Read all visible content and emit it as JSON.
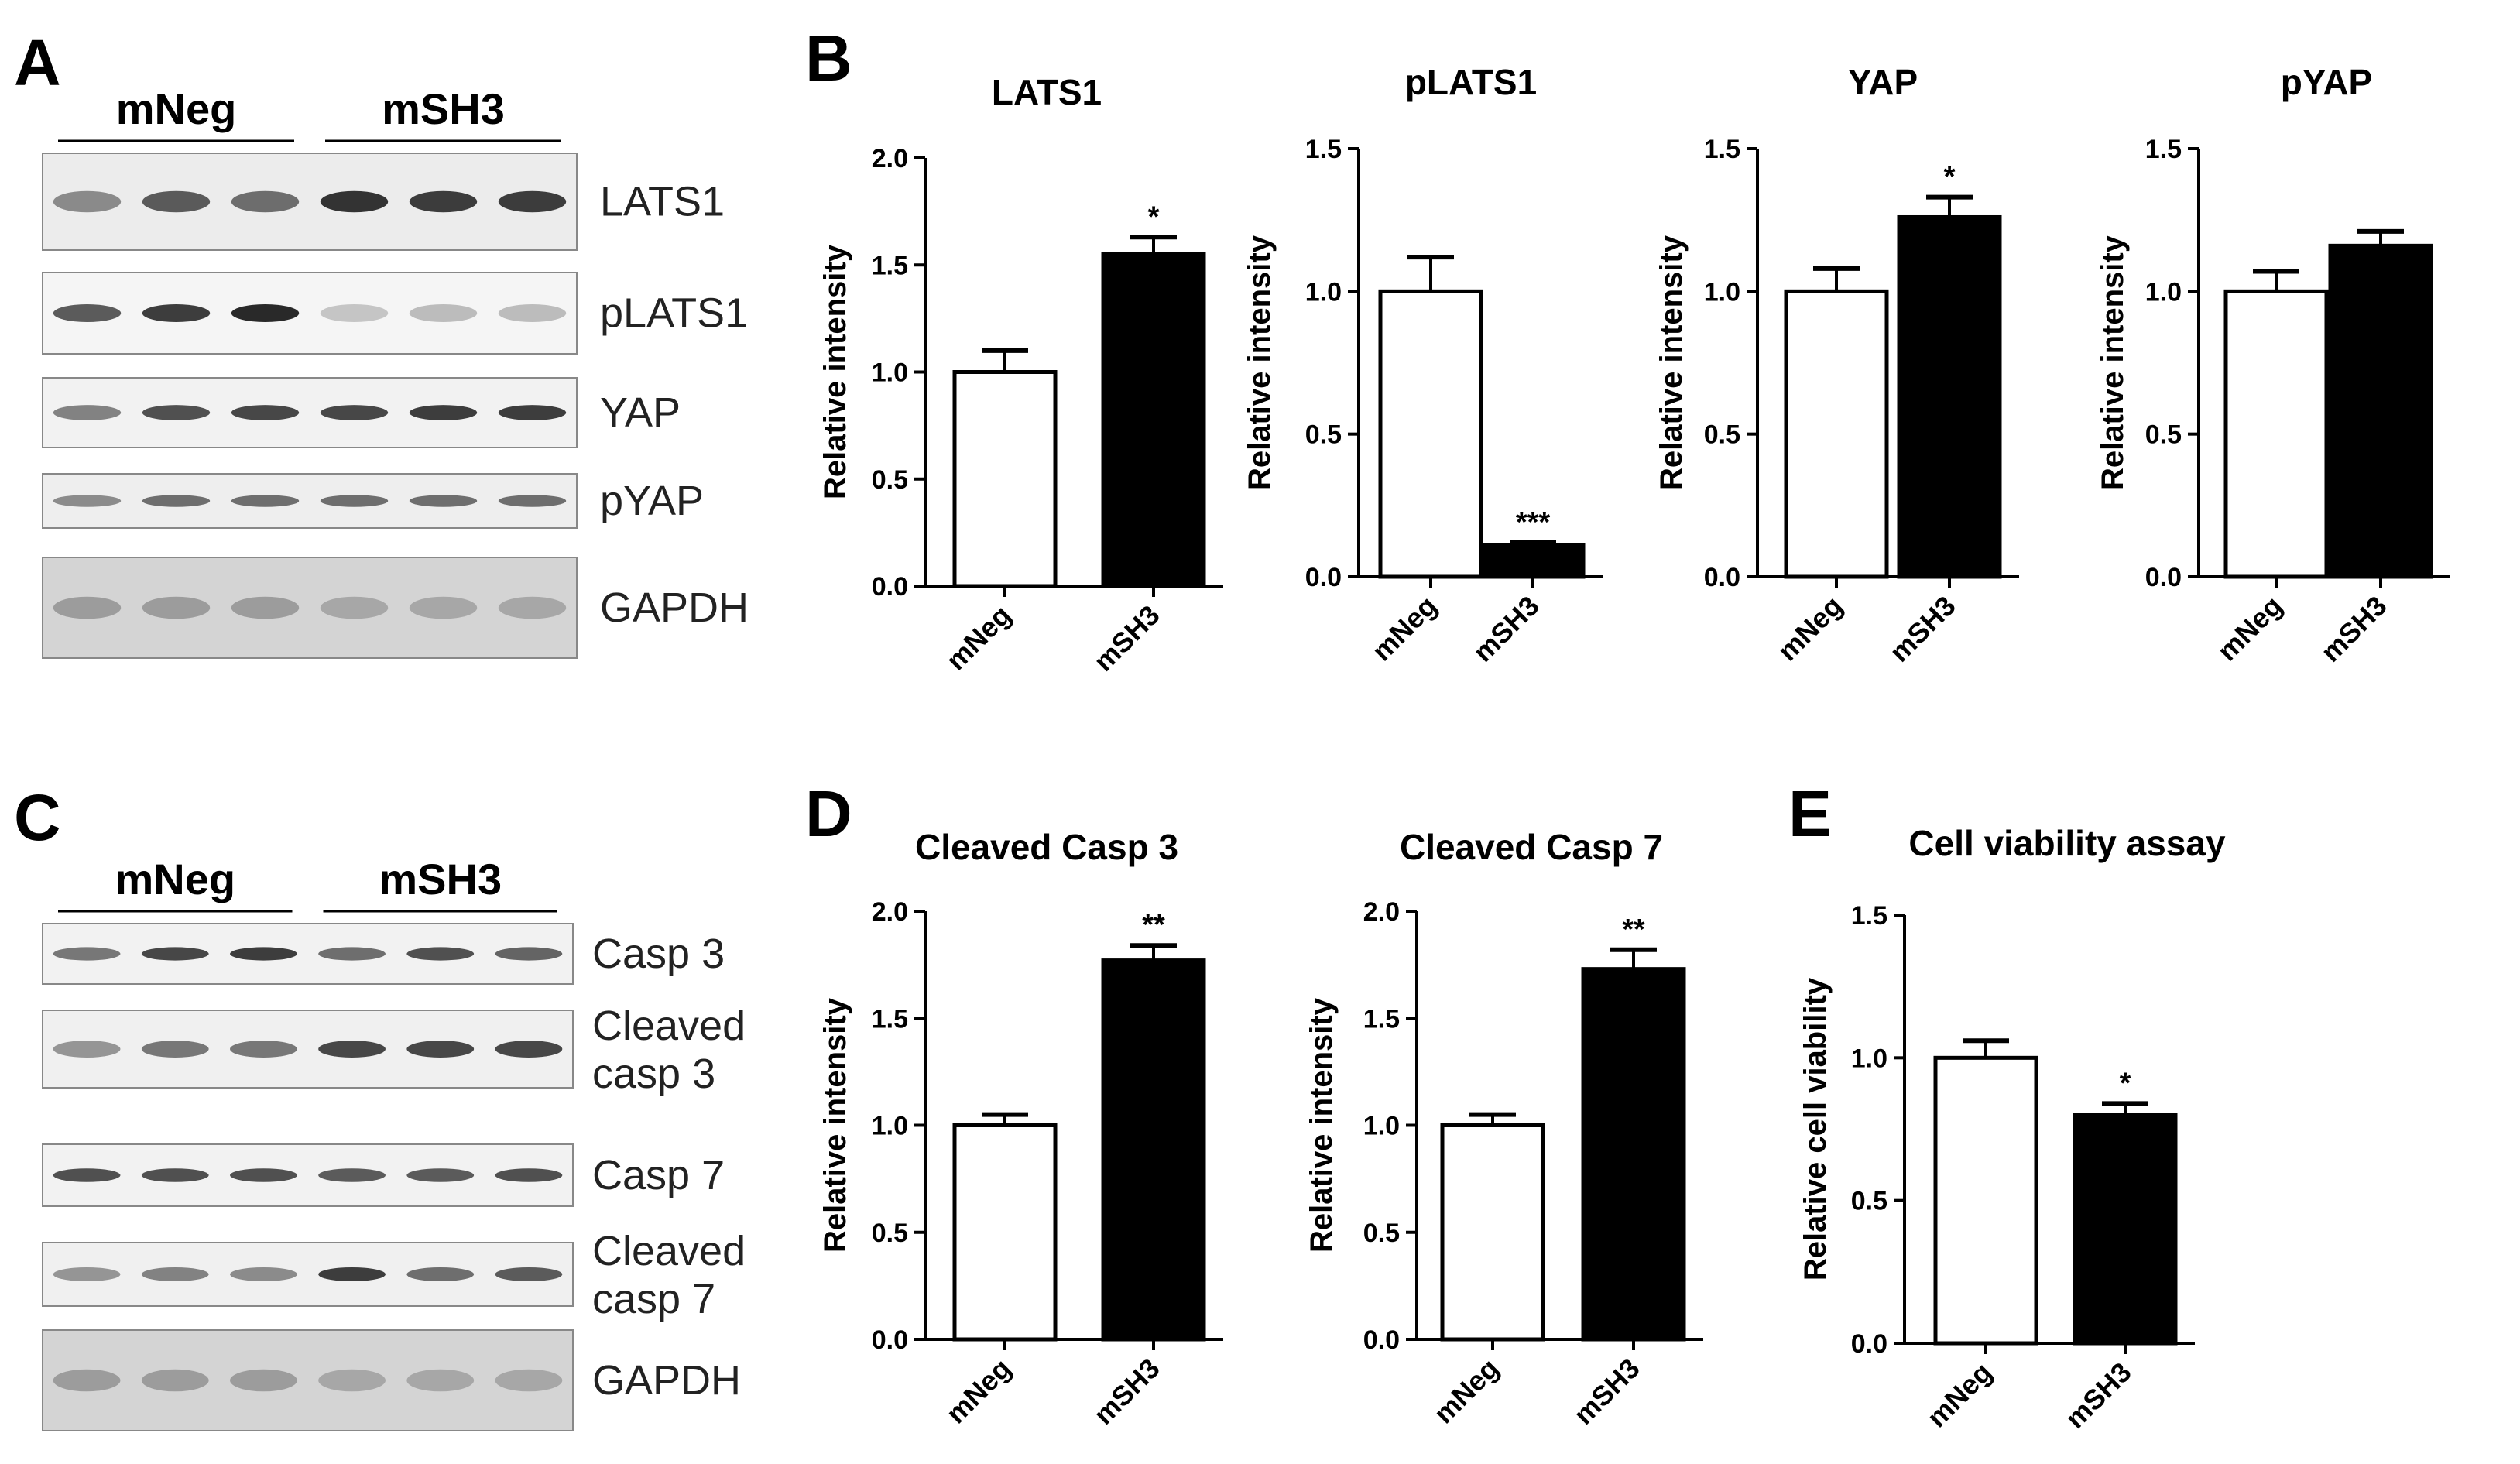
{
  "panels": {
    "A": {
      "letter": "A",
      "groups": [
        "mNeg",
        "mSH3"
      ],
      "lanes": 6,
      "blots": [
        {
          "label": "LATS1",
          "intensities": [
            0.45,
            0.7,
            0.6,
            0.9,
            0.85,
            0.85
          ],
          "background": "#ececec"
        },
        {
          "label": "pLATS1",
          "intensities": [
            0.7,
            0.85,
            0.95,
            0.15,
            0.2,
            0.2
          ],
          "background": "#f5f5f5"
        },
        {
          "label": "YAP",
          "intensities": [
            0.5,
            0.75,
            0.8,
            0.8,
            0.85,
            0.85
          ],
          "background": "#f2f2f2"
        },
        {
          "label": "pYAP",
          "intensities": [
            0.45,
            0.6,
            0.6,
            0.6,
            0.6,
            0.6
          ],
          "background": "#eeeeee"
        },
        {
          "label": "GAPDH",
          "intensities": [
            0.35,
            0.35,
            0.35,
            0.3,
            0.3,
            0.3
          ],
          "background": "#d4d4d4"
        }
      ]
    },
    "C": {
      "letter": "C",
      "groups": [
        "mNeg",
        "mSH3"
      ],
      "lanes": 6,
      "blots": [
        {
          "label": "Casp 3",
          "lines": [
            "Casp 3"
          ],
          "intensities": [
            0.55,
            0.8,
            0.85,
            0.6,
            0.75,
            0.65
          ],
          "background": "#f2f2f2"
        },
        {
          "label": "Cleaved casp 3",
          "lines": [
            "Cleaved",
            "casp 3"
          ],
          "intensities": [
            0.4,
            0.55,
            0.55,
            0.8,
            0.8,
            0.8
          ],
          "background": "#f0f0f0"
        },
        {
          "label": "Casp 7",
          "lines": [
            "Casp 7"
          ],
          "intensities": [
            0.75,
            0.75,
            0.75,
            0.7,
            0.7,
            0.75
          ],
          "background": "#f2f2f2"
        },
        {
          "label": "Cleaved casp 7",
          "lines": [
            "Cleaved",
            "casp 7"
          ],
          "intensities": [
            0.4,
            0.5,
            0.45,
            0.85,
            0.6,
            0.7
          ],
          "background": "#f0f0f0"
        },
        {
          "label": "GAPDH",
          "lines": [
            "GAPDH"
          ],
          "intensities": [
            0.35,
            0.35,
            0.35,
            0.3,
            0.3,
            0.3
          ],
          "background": "#d4d4d4"
        }
      ]
    },
    "B": {
      "letter": "B"
    },
    "D": {
      "letter": "D"
    },
    "E": {
      "letter": "E"
    }
  },
  "chart_data": [
    {
      "type": "bar",
      "panel": "B",
      "title": "LATS1",
      "categories": [
        "mNeg",
        "mSH3"
      ],
      "values": [
        1.0,
        1.55
      ],
      "errors": [
        0.1,
        0.08
      ],
      "ylabel": "Relative intensity",
      "xlabel": "",
      "ylim": [
        0,
        2.0
      ],
      "yticks": [
        "0.0",
        "0.5",
        "1.0",
        "1.5",
        "2.0"
      ],
      "significance": [
        "",
        "*"
      ],
      "colors": [
        "#ffffff",
        "#000000"
      ]
    },
    {
      "type": "bar",
      "panel": "B",
      "title": "pLATS1",
      "categories": [
        "mNeg",
        "mSH3"
      ],
      "values": [
        1.0,
        0.11
      ],
      "errors": [
        0.12,
        0.01
      ],
      "ylabel": "Relative intensity",
      "xlabel": "",
      "ylim": [
        0,
        1.5
      ],
      "yticks": [
        "0.0",
        "0.5",
        "1.0",
        "1.5"
      ],
      "significance": [
        "",
        "***"
      ],
      "colors": [
        "#ffffff",
        "#000000"
      ]
    },
    {
      "type": "bar",
      "panel": "B",
      "title": "YAP",
      "categories": [
        "mNeg",
        "mSH3"
      ],
      "values": [
        1.0,
        1.26
      ],
      "errors": [
        0.08,
        0.07
      ],
      "ylabel": "Relative intensity",
      "xlabel": "",
      "ylim": [
        0,
        1.5
      ],
      "yticks": [
        "0.0",
        "0.5",
        "1.0",
        "1.5"
      ],
      "significance": [
        "",
        "*"
      ],
      "colors": [
        "#ffffff",
        "#000000"
      ]
    },
    {
      "type": "bar",
      "panel": "B",
      "title": "pYAP",
      "categories": [
        "mNeg",
        "mSH3"
      ],
      "values": [
        1.0,
        1.16
      ],
      "errors": [
        0.07,
        0.05
      ],
      "ylabel": "Relative intensity",
      "xlabel": "",
      "ylim": [
        0,
        1.5
      ],
      "yticks": [
        "0.0",
        "0.5",
        "1.0",
        "1.5"
      ],
      "significance": [
        "",
        ""
      ],
      "colors": [
        "#ffffff",
        "#000000"
      ]
    },
    {
      "type": "bar",
      "panel": "D",
      "title": "Cleaved Casp 3",
      "categories": [
        "mNeg",
        "mSH3"
      ],
      "values": [
        1.0,
        1.77
      ],
      "errors": [
        0.05,
        0.07
      ],
      "ylabel": "Relative intensity",
      "xlabel": "",
      "ylim": [
        0,
        2.0
      ],
      "yticks": [
        "0.0",
        "0.5",
        "1.0",
        "1.5",
        "2.0"
      ],
      "significance": [
        "",
        "**"
      ],
      "colors": [
        "#ffffff",
        "#000000"
      ]
    },
    {
      "type": "bar",
      "panel": "D",
      "title": "Cleaved Casp 7",
      "categories": [
        "mNeg",
        "mSH3"
      ],
      "values": [
        1.0,
        1.73
      ],
      "errors": [
        0.05,
        0.09
      ],
      "ylabel": "Relative intensity",
      "xlabel": "",
      "ylim": [
        0,
        2.0
      ],
      "yticks": [
        "0.0",
        "0.5",
        "1.0",
        "1.5",
        "2.0"
      ],
      "significance": [
        "",
        "**"
      ],
      "colors": [
        "#ffffff",
        "#000000"
      ]
    },
    {
      "type": "bar",
      "panel": "E",
      "title": "Cell viability assay",
      "categories": [
        "mNeg",
        "mSH3"
      ],
      "values": [
        1.0,
        0.8
      ],
      "errors": [
        0.06,
        0.04
      ],
      "ylabel": "Relative cell viability",
      "xlabel": "",
      "ylim": [
        0,
        1.5
      ],
      "yticks": [
        "0.0",
        "0.5",
        "1.0",
        "1.5"
      ],
      "significance": [
        "",
        "*"
      ],
      "colors": [
        "#ffffff",
        "#000000"
      ]
    }
  ]
}
